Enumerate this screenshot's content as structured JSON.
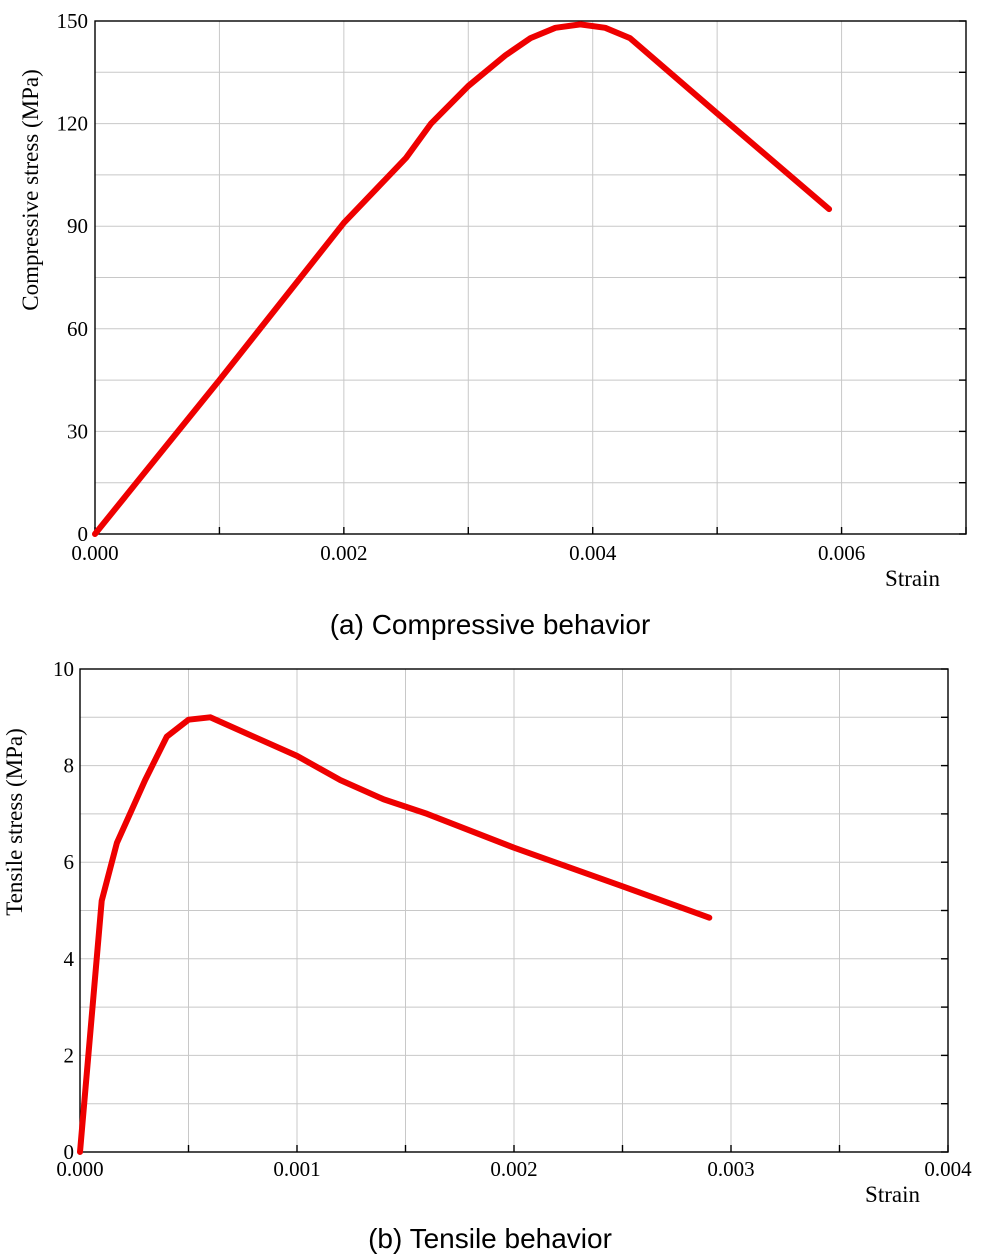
{
  "chart_data": [
    {
      "type": "line",
      "xlabel": "Strain",
      "ylabel": "Compressive stress (MPa)",
      "caption": "(a) Compressive behavior",
      "xlim": [
        0,
        0.007
      ],
      "ylim": [
        0,
        150
      ],
      "x_ticks": [
        0.0,
        0.001,
        0.002,
        0.003,
        0.004,
        0.005,
        0.006,
        0.007
      ],
      "x_tick_labels": [
        "0.000",
        "",
        "0.002",
        "",
        "0.004",
        "",
        "0.006",
        ""
      ],
      "y_ticks": [
        0,
        15,
        30,
        45,
        60,
        75,
        90,
        105,
        120,
        135,
        150
      ],
      "y_tick_labels": [
        "0",
        "",
        "30",
        "",
        "60",
        "",
        "90",
        "",
        "120",
        "",
        "150"
      ],
      "grid": true,
      "line_color": "#ee0000",
      "series": [
        {
          "x": [
            0.0,
            0.001,
            0.002,
            0.0025,
            0.0027,
            0.003,
            0.0033,
            0.0035,
            0.0037,
            0.0039,
            0.0041,
            0.0043,
            0.005,
            0.0059
          ],
          "y": [
            0,
            45,
            91,
            110,
            120,
            131,
            140,
            145,
            148,
            149,
            148,
            145,
            123,
            95
          ]
        }
      ]
    },
    {
      "type": "line",
      "xlabel": "Strain",
      "ylabel": "Tensile stress (MPa)",
      "caption": "(b) Tensile behavior",
      "xlim": [
        0,
        0.004
      ],
      "ylim": [
        0,
        10
      ],
      "x_ticks": [
        0.0,
        0.0005,
        0.001,
        0.0015,
        0.002,
        0.0025,
        0.003,
        0.0035,
        0.004
      ],
      "x_tick_labels": [
        "0.000",
        "",
        "0.001",
        "",
        "0.002",
        "",
        "0.003",
        "",
        "0.004"
      ],
      "y_ticks": [
        0,
        1,
        2,
        3,
        4,
        5,
        6,
        7,
        8,
        9,
        10
      ],
      "y_tick_labels": [
        "0",
        "",
        "2",
        "",
        "4",
        "",
        "6",
        "",
        "8",
        "",
        "10"
      ],
      "grid": true,
      "line_color": "#ee0000",
      "series": [
        {
          "x": [
            0.0,
            0.0001,
            0.00017,
            0.0003,
            0.0004,
            0.0005,
            0.0006,
            0.0008,
            0.001,
            0.0012,
            0.0014,
            0.0016,
            0.002,
            0.0025,
            0.0029
          ],
          "y": [
            0,
            5.2,
            6.4,
            7.7,
            8.6,
            8.95,
            9.0,
            8.6,
            8.2,
            7.7,
            7.3,
            7.0,
            6.3,
            5.5,
            4.85
          ]
        }
      ]
    }
  ]
}
